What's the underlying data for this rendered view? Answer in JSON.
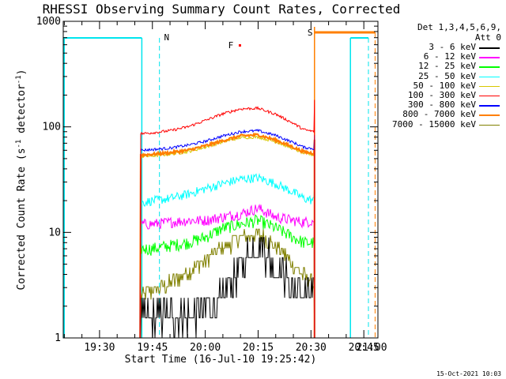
{
  "title": "RHESSI Observing Summary Count Rates, Corrected",
  "legend_header": [
    "Det 1,3,4,5,6,9,",
    "Att 0"
  ],
  "timestamp": "15-Oct-2021 10:03",
  "colors": {
    "3-6": "#000000",
    "6-12": "#ff00ff",
    "12-25": "#00ff00",
    "25-50": "#00ffff",
    "50-100": "#d8c800",
    "100-300": "#ff0000",
    "300-800": "#0000ff",
    "800-7000": "#ff7f00",
    "7000-15000": "#808000",
    "orbit": "#00e5ee",
    "flag_s": "#ff7f00",
    "flag_f": "#ff0000"
  },
  "legend": [
    {
      "label": "3 - 6 keV",
      "color": "#000000"
    },
    {
      "label": "6 - 12 keV",
      "color": "#ff00ff"
    },
    {
      "label": "12 - 25 keV",
      "color": "#00ff00"
    },
    {
      "label": "25 - 50 keV",
      "color": "#00ffff"
    },
    {
      "label": "50 - 100 keV",
      "color": "#d8c800"
    },
    {
      "label": "100 - 300 keV",
      "color": "#ff0000"
    },
    {
      "label": "300 - 800 keV",
      "color": "#0000ff"
    },
    {
      "label": "800 - 7000 keV",
      "color": "#ff7f00"
    },
    {
      "label": "7000 - 15000 keV",
      "color": "#808000"
    }
  ],
  "flags": {
    "night_label": "N",
    "saa_label": "S",
    "flare_label": "F"
  },
  "chart_data": {
    "type": "line",
    "xlabel": "Start Time (16-Jul-10 19:25:42)",
    "ylabel": "Corrected Count Rate (s-1 detector-1)",
    "ylabel_parts": {
      "main": "Corrected Count Rate (s",
      "sup1": "-1",
      "mid": " detector",
      "sup2": "-1",
      "end": ")"
    },
    "y_scale": "log",
    "ylim": [
      1,
      1000
    ],
    "y_ticks": [
      {
        "value": 1,
        "label": "1"
      },
      {
        "value": 10,
        "label": "10"
      },
      {
        "value": 100,
        "label": "100"
      },
      {
        "value": 1000,
        "label": "1000"
      }
    ],
    "x_range_minutes": [
      19.7,
      109.0
    ],
    "x_ticks": [
      {
        "minutes": 30,
        "label": "19:30"
      },
      {
        "minutes": 45,
        "label": "19:45"
      },
      {
        "minutes": 60,
        "label": "20:00"
      },
      {
        "minutes": 75,
        "label": "20:15"
      },
      {
        "minutes": 90,
        "label": "20:30"
      },
      {
        "minutes": 105,
        "label": "20:45"
      },
      {
        "minutes": 120,
        "label": "21:00"
      }
    ],
    "data_interval_minutes": [
      41.5,
      91.0
    ],
    "series": [
      {
        "name": "3 - 6 keV",
        "color": "#000000",
        "x": [
          41.5,
          45,
          50,
          55,
          60,
          65,
          70,
          75,
          80,
          85,
          88,
          91
        ],
        "y": [
          1.5,
          1.6,
          1.6,
          1.7,
          1.9,
          2.4,
          5,
          8,
          5,
          3,
          2.6,
          2.5
        ]
      },
      {
        "name": "6 - 12 keV",
        "color": "#ff00ff",
        "x": [
          41.5,
          45,
          50,
          55,
          60,
          65,
          70,
          75,
          80,
          85,
          88,
          91
        ],
        "y": [
          12,
          12,
          12.5,
          13,
          13,
          14,
          15,
          17,
          14,
          13,
          12.5,
          13
        ]
      },
      {
        "name": "12 - 25 keV",
        "color": "#00ff00",
        "x": [
          41.5,
          45,
          50,
          55,
          60,
          65,
          70,
          75,
          80,
          85,
          88,
          91
        ],
        "y": [
          7,
          7,
          7.5,
          8,
          9,
          11,
          12,
          13,
          11,
          9,
          8,
          8
        ]
      },
      {
        "name": "25 - 50 keV",
        "color": "#00ffff",
        "x": [
          41.5,
          45,
          50,
          55,
          60,
          65,
          70,
          75,
          80,
          85,
          88,
          91
        ],
        "y": [
          19,
          20,
          21,
          23,
          26,
          29,
          32,
          33,
          29,
          24,
          21,
          20
        ]
      },
      {
        "name": "50 - 100 keV",
        "color": "#d8c800",
        "x": [
          41.5,
          45,
          50,
          55,
          60,
          65,
          70,
          75,
          80,
          85,
          88,
          91
        ],
        "y": [
          52,
          53,
          55,
          58,
          64,
          72,
          79,
          80,
          72,
          62,
          56,
          54
        ]
      },
      {
        "name": "100 - 300 keV",
        "color": "#ff0000",
        "x": [
          41.5,
          45,
          50,
          55,
          60,
          65,
          70,
          75,
          80,
          85,
          88,
          91
        ],
        "y": [
          86,
          88,
          92,
          100,
          115,
          133,
          148,
          150,
          132,
          108,
          94,
          90
        ]
      },
      {
        "name": "300 - 800 keV",
        "color": "#0000ff",
        "x": [
          41.5,
          45,
          50,
          55,
          60,
          65,
          70,
          75,
          80,
          85,
          88,
          91
        ],
        "y": [
          60,
          61,
          63,
          67,
          73,
          82,
          90,
          92,
          83,
          71,
          64,
          62
        ]
      },
      {
        "name": "800 - 7000 keV",
        "color": "#ff7f00",
        "x": [
          41.5,
          45,
          50,
          55,
          60,
          65,
          70,
          75,
          80,
          85,
          88,
          91
        ],
        "y": [
          54,
          55,
          57,
          60,
          66,
          74,
          82,
          84,
          75,
          64,
          58,
          56
        ]
      },
      {
        "name": "7000 - 15000 keV",
        "color": "#808000",
        "x": [
          41.5,
          45,
          50,
          55,
          60,
          65,
          70,
          75,
          80,
          85,
          88,
          91
        ],
        "y": [
          2.5,
          2.8,
          3.3,
          4.2,
          5.5,
          7.2,
          9,
          9.5,
          7.5,
          5,
          3.8,
          3.3
        ]
      }
    ]
  }
}
